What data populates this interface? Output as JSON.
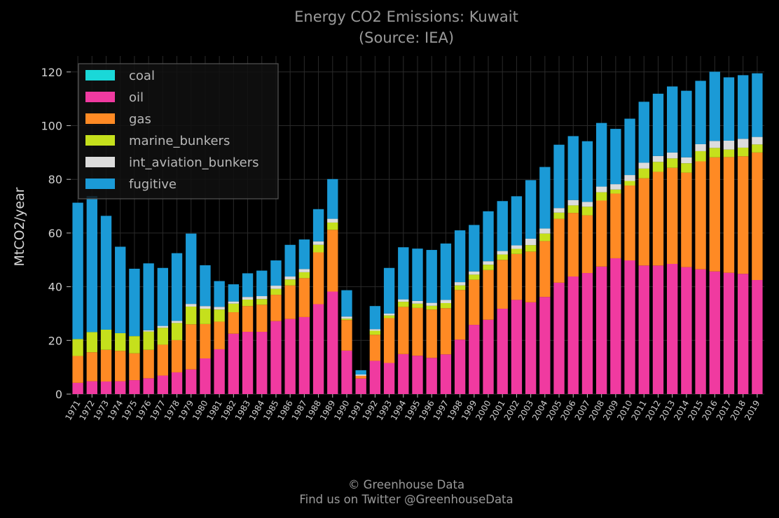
{
  "chart_data": {
    "type": "bar",
    "stacked": true,
    "title": "Energy CO2 Emissions: Kuwait",
    "subtitle": "(Source: IEA)",
    "xlabel": "",
    "ylabel": "MtCO2/year",
    "ylim": [
      0,
      125
    ],
    "yticks": [
      0,
      20,
      40,
      60,
      80,
      100,
      120
    ],
    "grid": true,
    "legend_position": "top-left",
    "categories": [
      "1971",
      "1972",
      "1973",
      "1974",
      "1975",
      "1976",
      "1977",
      "1978",
      "1979",
      "1980",
      "1981",
      "1982",
      "1983",
      "1984",
      "1985",
      "1986",
      "1987",
      "1988",
      "1989",
      "1990",
      "1991",
      "1992",
      "1993",
      "1994",
      "1995",
      "1996",
      "1997",
      "1998",
      "1999",
      "2000",
      "2001",
      "2002",
      "2003",
      "2004",
      "2005",
      "2006",
      "2007",
      "2008",
      "2009",
      "2010",
      "2011",
      "2012",
      "2013",
      "2014",
      "2015",
      "2016",
      "2017",
      "2018",
      "2019"
    ],
    "series": [
      {
        "name": "coal",
        "color": "#1ad8d8",
        "values": [
          0,
          0,
          0,
          0,
          0,
          0,
          0,
          0,
          0,
          0,
          0,
          0,
          0,
          0,
          0,
          0,
          0,
          0,
          0,
          0,
          0,
          0,
          0,
          0,
          0,
          0,
          0,
          0,
          0,
          0,
          0,
          0,
          0,
          0,
          0,
          0,
          0,
          0,
          0,
          0,
          0,
          0,
          0,
          0,
          0,
          0,
          0,
          0,
          0
        ]
      },
      {
        "name": "oil",
        "color": "#f03aa0",
        "values": [
          4.2,
          4.8,
          4.7,
          4.8,
          5.2,
          5.9,
          6.9,
          8.1,
          9.2,
          13.3,
          16.7,
          22.5,
          23.2,
          23.2,
          27.2,
          28.0,
          28.7,
          33.5,
          38.2,
          16.2,
          5.8,
          12.4,
          11.6,
          14.9,
          14.3,
          13.5,
          14.8,
          20.3,
          25.8,
          27.7,
          31.8,
          35.1,
          34.2,
          36.2,
          41.5,
          43.8,
          45.1,
          47.5,
          50.6,
          49.8,
          47.9,
          47.9,
          48.5,
          47.3,
          46.5,
          45.7,
          45.2,
          44.8,
          42.5
        ]
      },
      {
        "name": "gas",
        "color": "#ff8a24",
        "values": [
          10.0,
          10.8,
          11.8,
          11.3,
          10.0,
          10.6,
          11.5,
          12.0,
          16.8,
          12.8,
          10.3,
          8.0,
          9.6,
          10.1,
          9.8,
          12.5,
          14.5,
          19.3,
          23.0,
          11.4,
          1.0,
          9.7,
          16.7,
          17.6,
          17.8,
          18.0,
          17.2,
          18.5,
          16.8,
          18.5,
          18.2,
          17.1,
          18.9,
          20.8,
          23.8,
          23.7,
          21.5,
          24.6,
          24.1,
          27.9,
          32.5,
          34.9,
          35.8,
          35.2,
          40.2,
          42.5,
          43.1,
          43.8,
          47.5
        ]
      },
      {
        "name": "marine_bunkers",
        "color": "#c5e01c",
        "values": [
          6.3,
          7.5,
          7.5,
          6.6,
          6.4,
          6.8,
          6.3,
          6.4,
          6.6,
          5.7,
          4.5,
          3.2,
          2.4,
          2.1,
          2.2,
          2.2,
          2.2,
          2.8,
          2.7,
          0.5,
          0,
          1.5,
          1.0,
          1.9,
          1.6,
          1.4,
          1.9,
          1.7,
          1.9,
          2.0,
          2.0,
          1.9,
          2.4,
          2.8,
          2.3,
          2.8,
          3.2,
          3.1,
          1.5,
          1.7,
          3.6,
          3.7,
          3.5,
          3.5,
          3.8,
          3.5,
          2.8,
          3.2,
          3.0
        ]
      },
      {
        "name": "int_aviation_bunkers",
        "color": "#dcdcdc",
        "values": [
          0,
          0,
          0,
          0,
          0,
          0.5,
          0.7,
          0.8,
          1.0,
          1.0,
          1.0,
          0.8,
          1.0,
          1.1,
          1.2,
          1.1,
          1.2,
          1.3,
          1.4,
          0.8,
          0.5,
          0.6,
          0.7,
          0.9,
          1.0,
          1.1,
          1.2,
          1.2,
          1.2,
          1.3,
          1.3,
          1.3,
          2.4,
          1.9,
          1.7,
          2.0,
          1.8,
          2.1,
          2.0,
          2.2,
          2.2,
          2.2,
          2.2,
          2.2,
          2.6,
          2.6,
          3.3,
          3.3,
          2.8
        ]
      },
      {
        "name": "fugitive",
        "color": "#1b9ad6",
        "values": [
          50.8,
          50.7,
          42.4,
          32.2,
          25.1,
          24.9,
          21.6,
          25.2,
          26.2,
          15.2,
          9.6,
          6.4,
          8.8,
          9.5,
          9.4,
          11.8,
          11.0,
          12.0,
          14.8,
          9.8,
          1.6,
          8.6,
          17.0,
          19.4,
          19.5,
          19.7,
          21.0,
          19.3,
          17.3,
          18.6,
          18.6,
          18.3,
          21.8,
          22.9,
          23.6,
          23.8,
          22.6,
          23.7,
          20.6,
          21.0,
          22.7,
          23.2,
          24.6,
          24.8,
          23.6,
          25.8,
          23.6,
          23.7,
          23.7
        ]
      }
    ]
  },
  "footer": {
    "copyright": "© Greenhouse Data",
    "twitter": "Find us on Twitter @GreenhouseData"
  }
}
